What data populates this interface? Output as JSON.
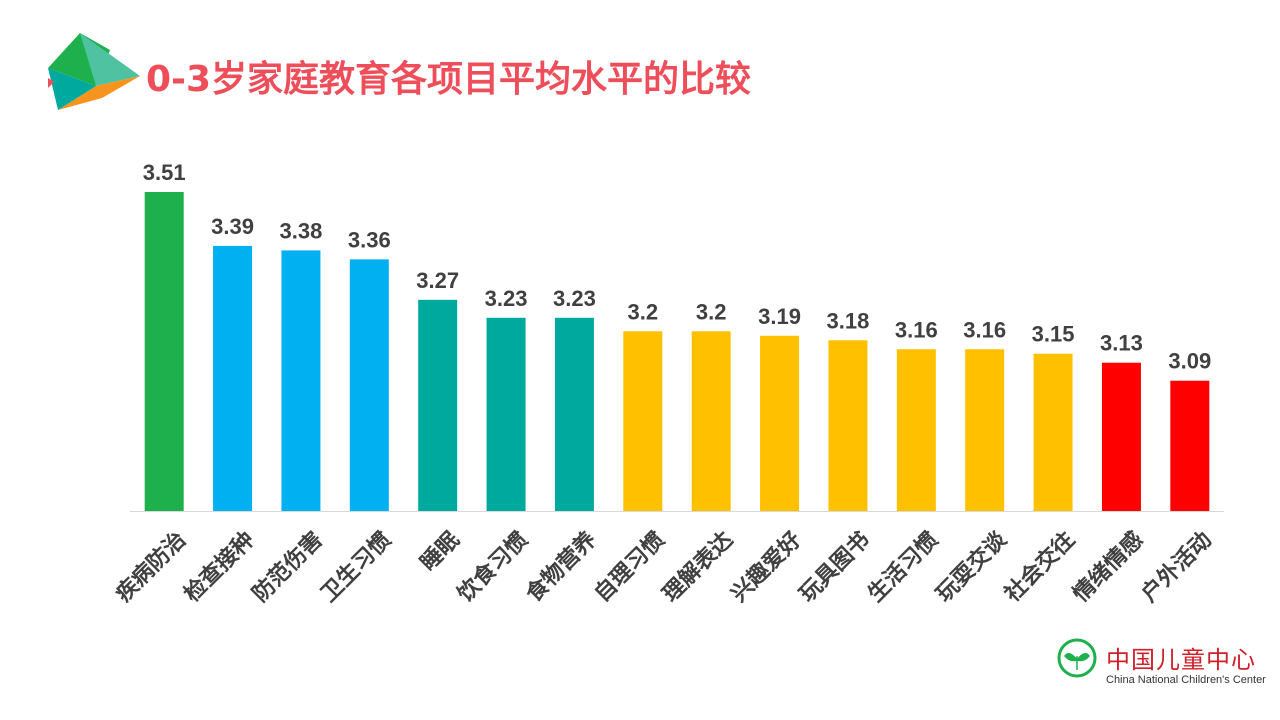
{
  "title": "0-3岁家庭教育各项目平均水平的比较",
  "logo": {
    "name_zh": "中国儿童中心",
    "name_en": "China National Children's Center"
  },
  "colors": {
    "title": "#ee4d5a",
    "green": "#1eb04d",
    "blue": "#00b0f0",
    "teal": "#00a99d",
    "yellow": "#ffc000",
    "red": "#ff0000"
  },
  "chart_data": {
    "type": "bar",
    "title": "0-3岁家庭教育各项目平均水平的比较",
    "xlabel": "",
    "ylabel": "",
    "categories": [
      "疾病防治",
      "检查接种",
      "防范伤害",
      "卫生习惯",
      "睡眠",
      "饮食习惯",
      "食物营养",
      "自理习惯",
      "理解表达",
      "兴趣爱好",
      "玩具图书",
      "生活习惯",
      "玩耍交谈",
      "社会交往",
      "情绪情感",
      "户外活动"
    ],
    "values": [
      3.51,
      3.39,
      3.38,
      3.36,
      3.27,
      3.23,
      3.23,
      3.2,
      3.2,
      3.19,
      3.18,
      3.16,
      3.16,
      3.15,
      3.13,
      3.09
    ],
    "value_labels": [
      "3.51",
      "3.39",
      "3.38",
      "3.36",
      "3.27",
      "3.23",
      "3.23",
      "3.2",
      "3.2",
      "3.19",
      "3.18",
      "3.16",
      "3.16",
      "3.15",
      "3.13",
      "3.09"
    ],
    "bar_colors": [
      "#1eb04d",
      "#00b0f0",
      "#00b0f0",
      "#00b0f0",
      "#00a99d",
      "#00a99d",
      "#00a99d",
      "#ffc000",
      "#ffc000",
      "#ffc000",
      "#ffc000",
      "#ffc000",
      "#ffc000",
      "#ffc000",
      "#ff0000",
      "#ff0000"
    ],
    "ylim": [
      2.8,
      3.55
    ],
    "grid": false,
    "legend": "none"
  }
}
